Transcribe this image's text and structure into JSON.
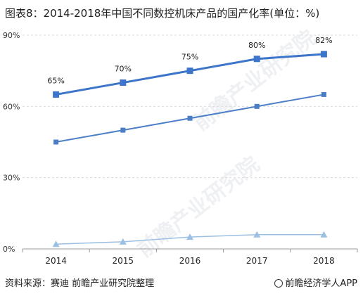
{
  "title": "图表8：2014-2018年中国不同数控机床产品的国产化率(单位：%)",
  "footer": {
    "source": "资料来源：赛迪 前瞻产业研究院整理",
    "brand": "前瞻经济学人APP"
  },
  "watermark": "前瞻产业研究院",
  "colors": {
    "series1": "#3c75c9",
    "series2": "#4a7ec7",
    "series3": "#9cc0e4",
    "grid": "#dcdcdc",
    "axis": "#9a9a9a"
  },
  "chart_data": {
    "type": "line",
    "x": [
      "2014",
      "2015",
      "2016",
      "2017",
      "2018"
    ],
    "ylim": [
      0,
      90
    ],
    "yticks": [
      0,
      30,
      60,
      90
    ],
    "ytick_labels": [
      "0%",
      "30%",
      "60%",
      "90%"
    ],
    "series": [
      {
        "values": [
          65,
          70,
          75,
          80,
          82
        ],
        "labels": [
          "65%",
          "70%",
          "75%",
          "80%",
          "82%"
        ],
        "marker": "square",
        "width": 3
      },
      {
        "values": [
          45,
          50,
          55,
          60,
          65
        ],
        "marker": "square",
        "width": 2
      },
      {
        "values": [
          2,
          3,
          5,
          6,
          6
        ],
        "marker": "triangle",
        "width": 1.5
      }
    ]
  }
}
